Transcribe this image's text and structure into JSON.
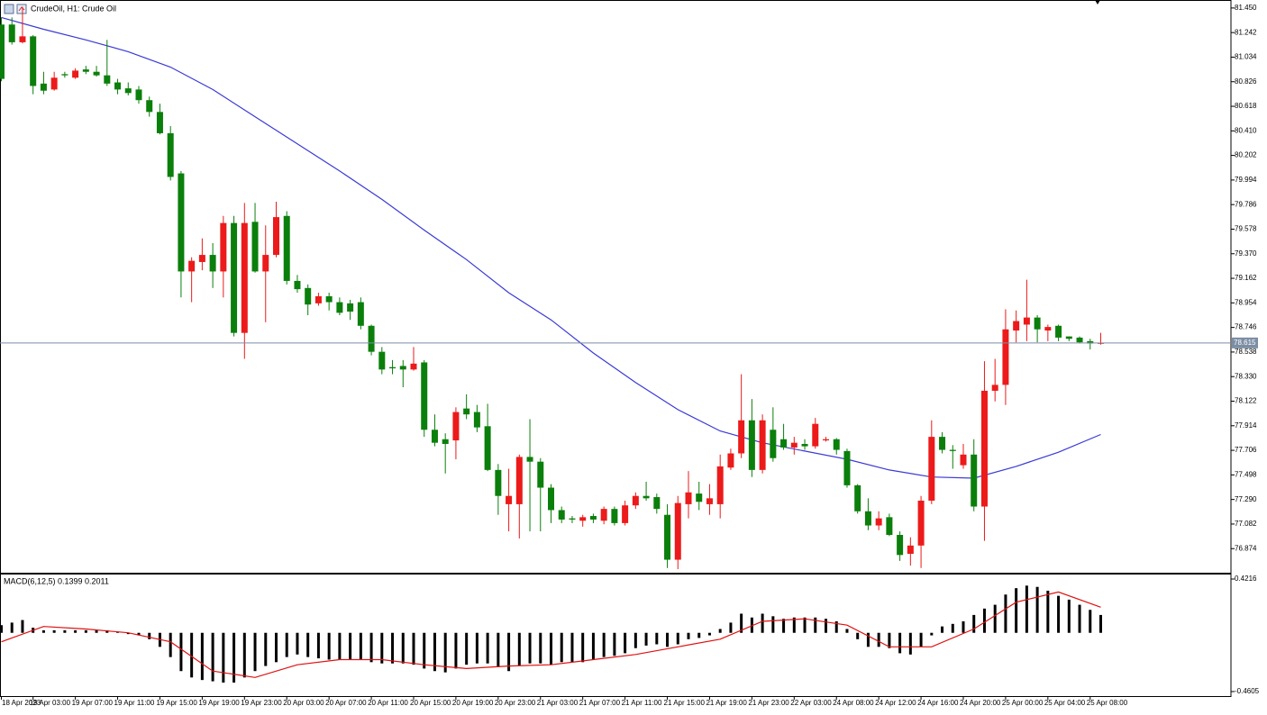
{
  "chart_data": [
    {
      "type": "candlestick",
      "title": "CrudeOil, H1:  Crude Oil",
      "categories": [
        "18 Apr 2023",
        null,
        null,
        "19 Apr 03:00",
        null,
        null,
        null,
        "19 Apr 07:00",
        null,
        null,
        null,
        "19 Apr 11:00",
        null,
        null,
        null,
        "19 Apr 15:00",
        null,
        null,
        null,
        "19 Apr 19:00",
        null,
        null,
        null,
        "19 Apr 23:00",
        null,
        null,
        null,
        "20 Apr 03:00",
        null,
        null,
        null,
        "20 Apr 07:00",
        null,
        null,
        null,
        "20 Apr 11:00",
        null,
        null,
        null,
        "20 Apr 15:00",
        null,
        null,
        null,
        "20 Apr 19:00",
        null,
        null,
        null,
        "20 Apr 23:00",
        null,
        null,
        null,
        "21 Apr 03:00",
        null,
        null,
        null,
        "21 Apr 07:00",
        null,
        null,
        null,
        "21 Apr 11:00",
        null,
        null,
        null,
        "21 Apr 15:00",
        null,
        null,
        null,
        "21 Apr 19:00",
        null,
        null,
        null,
        "21 Apr 23:00",
        null,
        null,
        null,
        "22 Apr 03:00",
        null,
        null,
        null,
        "24 Apr 08:00",
        null,
        null,
        null,
        "24 Apr 12:00",
        null,
        null,
        null,
        "24 Apr 16:00",
        null,
        null,
        null,
        "24 Apr 20:00",
        null,
        null,
        null,
        "25 Apr 00:00",
        null,
        null,
        null,
        "25 Apr 04:00",
        null,
        null,
        null,
        "25 Apr 08:00",
        null
      ],
      "open": [
        81.31,
        81.31,
        81.16,
        81.21,
        80.81,
        80.76,
        80.89,
        80.86,
        80.93,
        80.91,
        80.88,
        80.82,
        80.77,
        80.76,
        80.67,
        80.57,
        80.39,
        80.05,
        79.22,
        79.3,
        79.36,
        79.22,
        79.63,
        78.7,
        79.64,
        79.22,
        79.36,
        79.69,
        79.14,
        79.08,
        78.95,
        79.01,
        78.96,
        78.95,
        78.96,
        78.76,
        78.54,
        78.41,
        78.42,
        78.39,
        78.45,
        77.88,
        77.8,
        77.79,
        78.06,
        78.03,
        77.91,
        77.54,
        77.25,
        77.25,
        77.65,
        77.61,
        77.39,
        77.2,
        77.13,
        77.11,
        77.15,
        77.11,
        77.21,
        77.09,
        77.24,
        77.32,
        77.31,
        77.16,
        76.78,
        77.25,
        77.34,
        77.25,
        77.25,
        77.56,
        77.68,
        77.96,
        77.54,
        77.88,
        77.8,
        77.73,
        77.76,
        77.74,
        77.79,
        77.8,
        77.7,
        77.41,
        77.19,
        77.07,
        77.14,
        76.99,
        76.83,
        76.9,
        77.28,
        77.82,
        77.71,
        77.58,
        77.67,
        77.23,
        78.21,
        78.26,
        78.72,
        78.77,
        78.83,
        78.72,
        78.76,
        78.67,
        78.66,
        78.63,
        78.61
      ],
      "high": [
        81.37,
        81.37,
        81.46,
        81.22,
        80.91,
        80.91,
        80.91,
        80.94,
        80.96,
        80.96,
        81.18,
        80.85,
        80.82,
        80.79,
        80.7,
        80.64,
        80.45,
        80.07,
        79.34,
        79.5,
        79.46,
        79.69,
        79.69,
        79.8,
        79.8,
        79.61,
        79.81,
        79.73,
        79.19,
        79.11,
        79.04,
        79.04,
        79.0,
        78.98,
        79.0,
        78.77,
        78.58,
        78.47,
        78.47,
        78.58,
        78.47,
        78.01,
        77.85,
        78.07,
        78.18,
        78.09,
        78.1,
        77.59,
        77.55,
        77.67,
        77.97,
        77.64,
        77.42,
        77.23,
        77.15,
        77.16,
        77.17,
        77.23,
        77.23,
        77.28,
        77.35,
        77.44,
        77.34,
        77.25,
        77.32,
        77.53,
        77.44,
        77.42,
        77.67,
        77.72,
        78.35,
        78.14,
        78.01,
        78.07,
        77.93,
        77.82,
        77.8,
        77.98,
        77.82,
        77.81,
        77.72,
        77.42,
        77.3,
        77.19,
        77.17,
        77.02,
        76.97,
        77.32,
        77.96,
        77.86,
        77.75,
        77.76,
        77.8,
        78.46,
        78.48,
        78.9,
        78.89,
        79.15,
        78.85,
        78.77,
        78.77,
        78.67,
        78.67,
        78.65,
        78.7
      ],
      "low": [
        80.83,
        81.14,
        81.15,
        80.72,
        80.72,
        80.75,
        80.86,
        80.85,
        80.89,
        80.87,
        80.79,
        80.72,
        80.71,
        80.64,
        80.53,
        80.38,
        79.99,
        79.0,
        78.96,
        79.23,
        79.08,
        79.0,
        78.67,
        78.48,
        79.21,
        78.79,
        79.34,
        79.11,
        79.04,
        78.85,
        78.93,
        78.89,
        78.85,
        78.81,
        78.73,
        78.51,
        78.35,
        78.35,
        78.24,
        78.38,
        77.82,
        77.74,
        77.51,
        77.63,
        77.97,
        77.86,
        77.53,
        77.16,
        77.02,
        76.96,
        77.02,
        77.02,
        77.09,
        77.09,
        77.09,
        77.06,
        77.09,
        77.08,
        77.07,
        77.07,
        77.21,
        77.28,
        77.17,
        76.71,
        76.7,
        77.13,
        77.2,
        77.16,
        77.13,
        77.54,
        77.64,
        77.48,
        77.51,
        77.61,
        77.71,
        77.67,
        77.71,
        77.72,
        77.78,
        77.67,
        77.39,
        77.17,
        77.03,
        77.03,
        76.98,
        76.77,
        76.73,
        76.71,
        77.25,
        77.68,
        77.55,
        77.55,
        77.19,
        76.94,
        78.12,
        78.09,
        78.62,
        78.63,
        78.62,
        78.63,
        78.63,
        78.63,
        78.61,
        78.56,
        78.6
      ],
      "close": [
        80.85,
        81.16,
        81.21,
        80.79,
        80.75,
        80.86,
        80.88,
        80.92,
        80.91,
        80.88,
        80.81,
        80.76,
        80.73,
        80.67,
        80.57,
        80.39,
        80.02,
        79.22,
        79.31,
        79.36,
        79.22,
        79.63,
        78.7,
        79.63,
        79.22,
        79.36,
        79.68,
        79.14,
        79.07,
        78.94,
        79.01,
        78.96,
        78.87,
        78.88,
        78.76,
        78.54,
        78.39,
        78.4,
        78.39,
        78.44,
        77.88,
        77.77,
        77.76,
        78.03,
        78.01,
        77.9,
        77.54,
        77.32,
        77.32,
        77.65,
        77.61,
        77.39,
        77.2,
        77.12,
        77.12,
        77.14,
        77.12,
        77.21,
        77.09,
        77.24,
        77.32,
        77.3,
        77.21,
        76.78,
        77.26,
        77.35,
        77.27,
        77.3,
        77.57,
        77.68,
        77.96,
        77.54,
        77.96,
        77.64,
        77.73,
        77.77,
        77.74,
        77.93,
        77.8,
        77.71,
        77.41,
        77.19,
        77.07,
        77.13,
        76.99,
        76.82,
        76.9,
        77.28,
        77.82,
        77.71,
        77.7,
        77.67,
        77.23,
        78.21,
        78.26,
        78.73,
        78.8,
        78.83,
        78.73,
        78.75,
        78.66,
        78.65,
        78.62,
        78.61,
        78.615
      ],
      "color_up": "#ec1a1a",
      "color_down": "#0b7f0b",
      "ma": {
        "color": "#3a3ad6",
        "x": [
          0,
          4,
          8,
          12,
          16,
          20,
          24,
          28,
          32,
          36,
          40,
          44,
          48,
          52,
          56,
          60,
          64,
          68,
          72,
          76,
          80,
          84,
          88,
          92,
          96,
          100,
          104
        ],
        "values": [
          81.37,
          81.27,
          81.18,
          81.08,
          80.95,
          80.76,
          80.53,
          80.3,
          80.07,
          79.83,
          79.57,
          79.32,
          79.04,
          78.81,
          78.53,
          78.28,
          78.05,
          77.87,
          77.77,
          77.7,
          77.63,
          77.54,
          77.48,
          77.47,
          77.57,
          77.69,
          77.84
        ]
      },
      "current_price": 78.615,
      "current_color": "#7c8ea4",
      "ylim": [
        76.67,
        81.51
      ],
      "yticks": [
        {
          "value": 81.45,
          "label": "81.450"
        },
        81.242,
        81.034,
        80.826,
        80.618,
        {
          "value": 80.41,
          "label": "80.410"
        },
        80.202,
        79.994,
        79.786,
        79.578,
        {
          "value": 79.37,
          "label": "79.370"
        },
        79.162,
        78.954,
        78.746,
        78.538,
        {
          "value": 78.33,
          "label": "78.330"
        },
        78.122,
        77.914,
        77.706,
        77.498,
        {
          "value": 77.29,
          "label": "77.290"
        },
        77.082,
        76.874
      ]
    },
    {
      "type": "bar",
      "title": "MACD(6,12,5) 0.1399 0.2011",
      "color": "#000000",
      "values": [
        0.06,
        0.08,
        0.1,
        0.04,
        0.02,
        0.02,
        0.02,
        0.02,
        0.02,
        0.02,
        0.02,
        0.01,
        -0.01,
        -0.02,
        -0.05,
        -0.11,
        -0.19,
        -0.3,
        -0.35,
        -0.37,
        -0.38,
        -0.39,
        -0.39,
        -0.35,
        -0.3,
        -0.26,
        -0.23,
        -0.19,
        -0.17,
        -0.19,
        -0.2,
        -0.21,
        -0.21,
        -0.21,
        -0.21,
        -0.23,
        -0.24,
        -0.24,
        -0.24,
        -0.25,
        -0.28,
        -0.3,
        -0.31,
        -0.28,
        -0.25,
        -0.24,
        -0.24,
        -0.27,
        -0.3,
        -0.26,
        -0.24,
        -0.24,
        -0.25,
        -0.23,
        -0.23,
        -0.23,
        -0.21,
        -0.19,
        -0.18,
        -0.16,
        -0.12,
        -0.1,
        -0.09,
        -0.11,
        -0.09,
        -0.05,
        -0.04,
        -0.02,
        0.03,
        0.08,
        0.15,
        0.12,
        0.15,
        0.13,
        0.11,
        0.12,
        0.12,
        0.12,
        0.11,
        0.09,
        0.03,
        -0.05,
        -0.11,
        -0.11,
        -0.12,
        -0.16,
        -0.17,
        -0.11,
        -0.02,
        0.05,
        0.07,
        0.09,
        0.14,
        0.19,
        0.22,
        0.3,
        0.35,
        0.37,
        0.36,
        0.33,
        0.29,
        0.26,
        0.22,
        0.18,
        0.1399
      ],
      "signal": {
        "color": "#e01010",
        "x": [
          0,
          4,
          8,
          12,
          16,
          20,
          24,
          28,
          32,
          36,
          40,
          44,
          48,
          52,
          56,
          60,
          64,
          68,
          72,
          76,
          80,
          84,
          88,
          92,
          96,
          100,
          104
        ],
        "values": [
          -0.07,
          0.05,
          0.03,
          0.0,
          -0.07,
          -0.3,
          -0.35,
          -0.25,
          -0.21,
          -0.21,
          -0.25,
          -0.28,
          -0.26,
          -0.25,
          -0.21,
          -0.17,
          -0.11,
          -0.05,
          0.09,
          0.11,
          0.06,
          -0.11,
          -0.11,
          0.03,
          0.24,
          0.32,
          0.2011
        ]
      },
      "ylim": [
        -0.496,
        0.457
      ],
      "yticks": [
        0.4216,
        -0.4605
      ]
    }
  ]
}
